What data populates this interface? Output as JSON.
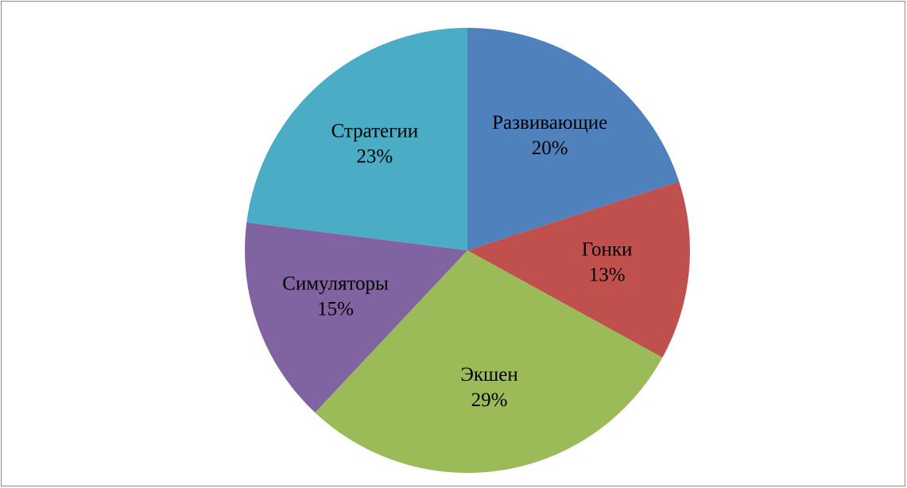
{
  "chart_data": {
    "type": "pie",
    "categories": [
      "Развивающие",
      "Гонки",
      "Экшен",
      "Симуляторы",
      "Стратегии"
    ],
    "values": [
      20,
      13,
      29,
      15,
      23
    ],
    "value_labels": [
      "20%",
      "13%",
      "29%",
      "15%",
      "23%"
    ],
    "colors": [
      "#4f81bd",
      "#c0504d",
      "#9bbb59",
      "#8064a2",
      "#4bacc6"
    ]
  }
}
